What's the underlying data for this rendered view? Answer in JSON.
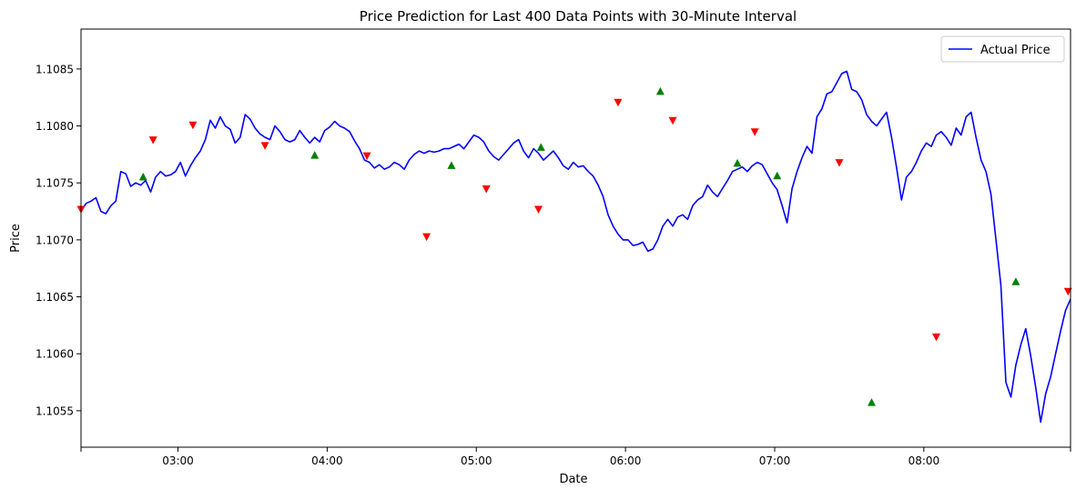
{
  "chart_data": {
    "type": "line",
    "title": "Price Prediction for Last 400 Data Points with 30-Minute Interval",
    "xlabel": "Date",
    "ylabel": "Price",
    "x_ticks": [
      "03:00",
      "04:00",
      "05:00",
      "06:00",
      "07:00",
      "08:00"
    ],
    "y_ticks": [
      "1.1055",
      "1.1060",
      "1.1065",
      "1.1070",
      "1.1075",
      "1.1080",
      "1.1085"
    ],
    "xlim": [
      "02:21",
      "08:59"
    ],
    "ylim": [
      1.10518,
      1.10885
    ],
    "grid": false,
    "legend": {
      "position": "top-right",
      "entries": [
        "Actual Price"
      ]
    },
    "colors": {
      "actual": "#0000ff",
      "buy": "#008000",
      "sell": "#ff0000"
    },
    "series": [
      {
        "name": "Actual Price",
        "points": [
          [
            "02:21",
            1.10725
          ],
          [
            "02:23",
            1.10732
          ],
          [
            "02:25",
            1.10734
          ],
          [
            "02:27",
            1.10737
          ],
          [
            "02:29",
            1.10725
          ],
          [
            "02:31",
            1.10723
          ],
          [
            "02:33",
            1.1073
          ],
          [
            "02:35",
            1.10734
          ],
          [
            "02:37",
            1.1076
          ],
          [
            "02:39",
            1.10758
          ],
          [
            "02:41",
            1.10747
          ],
          [
            "02:43",
            1.1075
          ],
          [
            "02:45",
            1.10748
          ],
          [
            "02:47",
            1.10752
          ],
          [
            "02:49",
            1.10742
          ],
          [
            "02:51",
            1.10755
          ],
          [
            "02:53",
            1.1076
          ],
          [
            "02:55",
            1.10756
          ],
          [
            "02:57",
            1.10757
          ],
          [
            "02:59",
            1.1076
          ],
          [
            "03:01",
            1.10768
          ],
          [
            "03:03",
            1.10756
          ],
          [
            "03:05",
            1.10765
          ],
          [
            "03:07",
            1.10772
          ],
          [
            "03:09",
            1.10778
          ],
          [
            "03:11",
            1.10788
          ],
          [
            "03:13",
            1.10805
          ],
          [
            "03:15",
            1.10798
          ],
          [
            "03:17",
            1.10808
          ],
          [
            "03:19",
            1.108
          ],
          [
            "03:21",
            1.10797
          ],
          [
            "03:23",
            1.10785
          ],
          [
            "03:25",
            1.1079
          ],
          [
            "03:27",
            1.1081
          ],
          [
            "03:29",
            1.10806
          ],
          [
            "03:31",
            1.10798
          ],
          [
            "03:33",
            1.10793
          ],
          [
            "03:35",
            1.1079
          ],
          [
            "03:37",
            1.10788
          ],
          [
            "03:39",
            1.108
          ],
          [
            "03:41",
            1.10795
          ],
          [
            "03:43",
            1.10788
          ],
          [
            "03:45",
            1.10786
          ],
          [
            "03:47",
            1.10788
          ],
          [
            "03:49",
            1.10796
          ],
          [
            "03:51",
            1.1079
          ],
          [
            "03:53",
            1.10785
          ],
          [
            "03:55",
            1.1079
          ],
          [
            "03:57",
            1.10786
          ],
          [
            "03:59",
            1.10796
          ],
          [
            "04:01",
            1.10799
          ],
          [
            "04:03",
            1.10804
          ],
          [
            "04:05",
            1.108
          ],
          [
            "04:07",
            1.10798
          ],
          [
            "04:09",
            1.10795
          ],
          [
            "04:11",
            1.10787
          ],
          [
            "04:13",
            1.1078
          ],
          [
            "04:15",
            1.1077
          ],
          [
            "04:17",
            1.10768
          ],
          [
            "04:19",
            1.10763
          ],
          [
            "04:21",
            1.10766
          ],
          [
            "04:23",
            1.10762
          ],
          [
            "04:25",
            1.10764
          ],
          [
            "04:27",
            1.10768
          ],
          [
            "04:29",
            1.10766
          ],
          [
            "04:31",
            1.10762
          ],
          [
            "04:33",
            1.1077
          ],
          [
            "04:35",
            1.10775
          ],
          [
            "04:37",
            1.10778
          ],
          [
            "04:39",
            1.10776
          ],
          [
            "04:41",
            1.10778
          ],
          [
            "04:43",
            1.10777
          ],
          [
            "04:45",
            1.10778
          ],
          [
            "04:47",
            1.1078
          ],
          [
            "04:49",
            1.1078
          ],
          [
            "04:51",
            1.10782
          ],
          [
            "04:53",
            1.10784
          ],
          [
            "04:55",
            1.1078
          ],
          [
            "04:57",
            1.10786
          ],
          [
            "04:59",
            1.10792
          ],
          [
            "05:01",
            1.1079
          ],
          [
            "05:03",
            1.10786
          ],
          [
            "05:05",
            1.10778
          ],
          [
            "05:07",
            1.10773
          ],
          [
            "05:09",
            1.1077
          ],
          [
            "05:11",
            1.10775
          ],
          [
            "05:13",
            1.1078
          ],
          [
            "05:15",
            1.10785
          ],
          [
            "05:17",
            1.10788
          ],
          [
            "05:19",
            1.10778
          ],
          [
            "05:21",
            1.10772
          ],
          [
            "05:23",
            1.1078
          ],
          [
            "05:25",
            1.10776
          ],
          [
            "05:27",
            1.1077
          ],
          [
            "05:29",
            1.10774
          ],
          [
            "05:31",
            1.10778
          ],
          [
            "05:33",
            1.10772
          ],
          [
            "05:35",
            1.10765
          ],
          [
            "05:37",
            1.10762
          ],
          [
            "05:39",
            1.10768
          ],
          [
            "05:41",
            1.10764
          ],
          [
            "05:43",
            1.10765
          ],
          [
            "05:45",
            1.1076
          ],
          [
            "05:47",
            1.10756
          ],
          [
            "05:49",
            1.10748
          ],
          [
            "05:51",
            1.10738
          ],
          [
            "05:53",
            1.10722
          ],
          [
            "05:55",
            1.10712
          ],
          [
            "05:57",
            1.10705
          ],
          [
            "05:59",
            1.107
          ],
          [
            "06:01",
            1.107
          ],
          [
            "06:03",
            1.10695
          ],
          [
            "06:05",
            1.10696
          ],
          [
            "06:07",
            1.10698
          ],
          [
            "06:09",
            1.1069
          ],
          [
            "06:11",
            1.10692
          ],
          [
            "06:13",
            1.107
          ],
          [
            "06:15",
            1.10712
          ],
          [
            "06:17",
            1.10718
          ],
          [
            "06:19",
            1.10712
          ],
          [
            "06:21",
            1.1072
          ],
          [
            "06:23",
            1.10722
          ],
          [
            "06:25",
            1.10718
          ],
          [
            "06:27",
            1.1073
          ],
          [
            "06:29",
            1.10735
          ],
          [
            "06:31",
            1.10738
          ],
          [
            "06:33",
            1.10748
          ],
          [
            "06:35",
            1.10742
          ],
          [
            "06:37",
            1.10738
          ],
          [
            "06:39",
            1.10745
          ],
          [
            "06:41",
            1.10752
          ],
          [
            "06:43",
            1.1076
          ],
          [
            "06:45",
            1.10762
          ],
          [
            "06:47",
            1.10764
          ],
          [
            "06:49",
            1.1076
          ],
          [
            "06:51",
            1.10765
          ],
          [
            "06:53",
            1.10768
          ],
          [
            "06:55",
            1.10766
          ],
          [
            "06:57",
            1.10758
          ],
          [
            "06:59",
            1.1075
          ],
          [
            "07:01",
            1.10744
          ],
          [
            "07:03",
            1.1073
          ],
          [
            "07:05",
            1.10715
          ],
          [
            "07:07",
            1.10745
          ],
          [
            "07:09",
            1.1076
          ],
          [
            "07:11",
            1.10772
          ],
          [
            "07:13",
            1.10782
          ],
          [
            "07:15",
            1.10776
          ],
          [
            "07:17",
            1.10808
          ],
          [
            "07:19",
            1.10815
          ],
          [
            "07:21",
            1.10828
          ],
          [
            "07:23",
            1.1083
          ],
          [
            "07:25",
            1.10838
          ],
          [
            "07:27",
            1.10846
          ],
          [
            "07:29",
            1.10848
          ],
          [
            "07:31",
            1.10832
          ],
          [
            "07:33",
            1.1083
          ],
          [
            "07:35",
            1.10823
          ],
          [
            "07:37",
            1.1081
          ],
          [
            "07:39",
            1.10804
          ],
          [
            "07:41",
            1.108
          ],
          [
            "07:43",
            1.10806
          ],
          [
            "07:45",
            1.10812
          ],
          [
            "07:47",
            1.1079
          ],
          [
            "07:49",
            1.10764
          ],
          [
            "07:51",
            1.10735
          ],
          [
            "07:53",
            1.10755
          ],
          [
            "07:55",
            1.1076
          ],
          [
            "07:57",
            1.10768
          ],
          [
            "07:59",
            1.10778
          ],
          [
            "08:01",
            1.10785
          ],
          [
            "08:03",
            1.10782
          ],
          [
            "08:05",
            1.10792
          ],
          [
            "08:07",
            1.10795
          ],
          [
            "08:09",
            1.1079
          ],
          [
            "08:11",
            1.10783
          ],
          [
            "08:13",
            1.10798
          ],
          [
            "08:15",
            1.10792
          ],
          [
            "08:17",
            1.10808
          ],
          [
            "08:19",
            1.10812
          ],
          [
            "08:21",
            1.1079
          ],
          [
            "08:23",
            1.1077
          ],
          [
            "08:25",
            1.1076
          ],
          [
            "08:27",
            1.1074
          ],
          [
            "08:29",
            1.107
          ],
          [
            "08:31",
            1.1066
          ],
          [
            "08:33",
            1.10575
          ],
          [
            "08:35",
            1.10562
          ],
          [
            "08:37",
            1.1059
          ],
          [
            "08:39",
            1.10608
          ],
          [
            "08:41",
            1.10622
          ],
          [
            "08:43",
            1.10598
          ],
          [
            "08:45",
            1.1057
          ],
          [
            "08:47",
            1.1054
          ],
          [
            "08:49",
            1.10565
          ],
          [
            "08:51",
            1.1058
          ],
          [
            "08:53",
            1.106
          ],
          [
            "08:55",
            1.1062
          ],
          [
            "08:57",
            1.10638
          ],
          [
            "08:59",
            1.10648
          ]
        ]
      }
    ],
    "markers": {
      "buy": [
        [
          "02:46",
          1.10755
        ],
        [
          "03:55",
          1.10774
        ],
        [
          "04:50",
          1.10765
        ],
        [
          "05:26",
          1.10781
        ],
        [
          "06:14",
          1.1083
        ],
        [
          "06:45",
          1.10767
        ],
        [
          "07:01",
          1.10756
        ],
        [
          "07:39",
          1.10557
        ],
        [
          "08:37",
          1.10663
        ]
      ],
      "sell": [
        [
          "02:21",
          1.10727
        ],
        [
          "02:50",
          1.10788
        ],
        [
          "03:06",
          1.10801
        ],
        [
          "03:35",
          1.10783
        ],
        [
          "04:16",
          1.10774
        ],
        [
          "04:40",
          1.10703
        ],
        [
          "05:04",
          1.10745
        ],
        [
          "05:25",
          1.10727
        ],
        [
          "05:57",
          1.10821
        ],
        [
          "06:19",
          1.10805
        ],
        [
          "06:52",
          1.10795
        ],
        [
          "07:26",
          1.10768
        ],
        [
          "08:05",
          1.10615
        ],
        [
          "08:58",
          1.10655
        ]
      ]
    }
  }
}
